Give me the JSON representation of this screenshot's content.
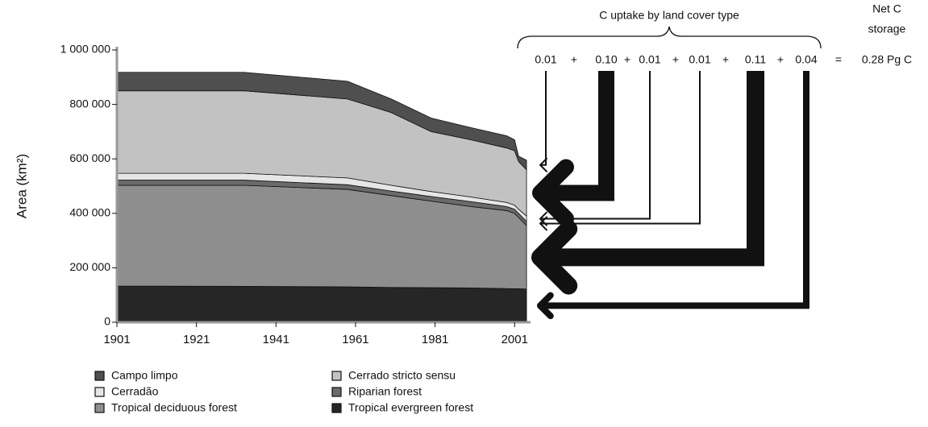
{
  "chart_data": {
    "type": "stacked_area",
    "y_label": "Area (km²)",
    "x": [
      1901,
      1933,
      1959,
      1970,
      1980,
      1990,
      1999,
      2001,
      2002,
      2004
    ],
    "xlim": [
      1901,
      2005
    ],
    "xticks": [
      1901,
      1921,
      1941,
      1961,
      1981,
      2001
    ],
    "ylim": [
      0,
      1000000
    ],
    "yticks": [
      0,
      {
        "value": 200000,
        "label": "200 000"
      },
      {
        "value": 400000,
        "label": "400 000"
      },
      {
        "value": 600000,
        "label": "600 000"
      },
      {
        "value": 800000,
        "label": "800 000"
      },
      {
        "value": 1000000,
        "label": "1 000 000"
      }
    ],
    "series": [
      {
        "name": "Campo limpo",
        "color": "#4f4f4f",
        "values": [
          68000,
          68000,
          65000,
          50000,
          50000,
          45000,
          45000,
          40000,
          20000,
          35000
        ]
      },
      {
        "name": "Cerrado stricto sensu",
        "color": "#c2c2c2",
        "values": [
          303000,
          303000,
          290000,
          267000,
          220000,
          210000,
          200000,
          200000,
          175000,
          170000
        ]
      },
      {
        "name": "Cerradão",
        "color": "#e6e6e6",
        "values": [
          25000,
          25000,
          25000,
          21000,
          18000,
          17000,
          15000,
          15000,
          15000,
          20000
        ]
      },
      {
        "name": "Riparian forest",
        "color": "#6a6a6a",
        "values": [
          19000,
          19000,
          17000,
          17000,
          17000,
          18000,
          15000,
          15000,
          15000,
          15000
        ]
      },
      {
        "name": "Tropical deciduous forest",
        "color": "#8e8e8e",
        "values": [
          370000,
          371000,
          358000,
          337000,
          318000,
          299000,
          286000,
          277000,
          262000,
          233000
        ]
      },
      {
        "name": "Tropical evergreen forest",
        "color": "#262626",
        "values": [
          133000,
          132000,
          130000,
          128000,
          127000,
          126000,
          124000,
          123000,
          123000,
          122000
        ]
      }
    ],
    "uptake": {
      "title": "C uptake by land cover type",
      "values": [
        0.01,
        0.1,
        0.01,
        0.01,
        0.11,
        0.04
      ],
      "value_labels": [
        "0.01",
        "0.10",
        "0.01",
        "0.01",
        "0.11",
        "0.04"
      ],
      "operators": [
        "+",
        "+",
        "+",
        "+",
        "+",
        "="
      ],
      "total_title": [
        "Net C",
        "storage"
      ],
      "total": "0.28 Pg C"
    }
  }
}
